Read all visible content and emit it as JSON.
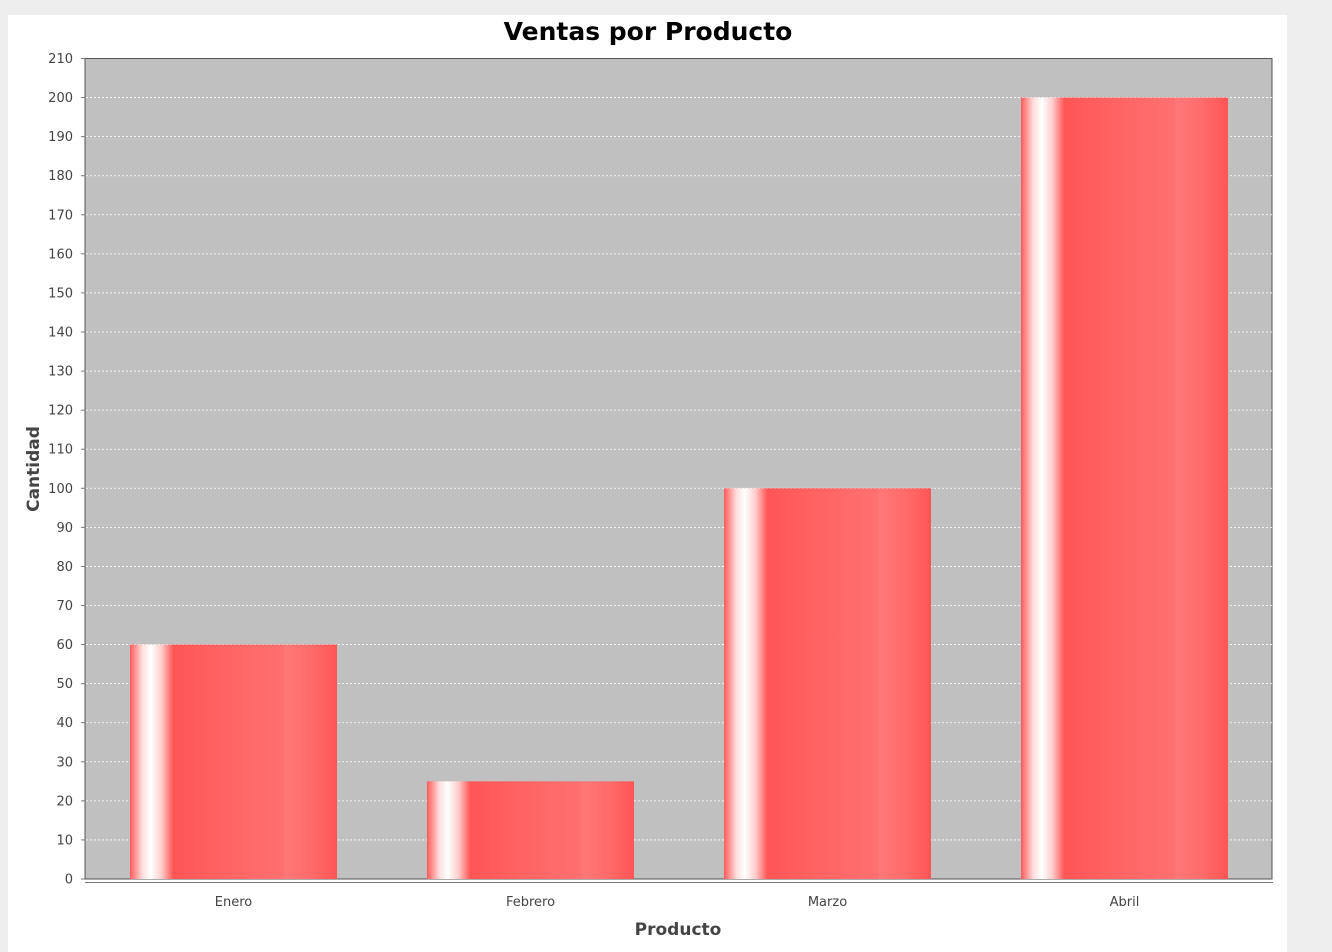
{
  "chart_data": {
    "type": "bar",
    "title": "Ventas por Producto",
    "xlabel": "Producto",
    "ylabel": "Cantidad",
    "categories": [
      "Enero",
      "Febrero",
      "Marzo",
      "Abril"
    ],
    "series": [
      {
        "values": [
          60,
          25,
          100,
          200
        ]
      }
    ],
    "ylim": [
      0,
      210
    ],
    "ytick_step": 10,
    "grid": true,
    "colors": {
      "bar": "#ff5555",
      "plot_background": "#c0c0c0",
      "gridline": "#ffffff"
    }
  }
}
